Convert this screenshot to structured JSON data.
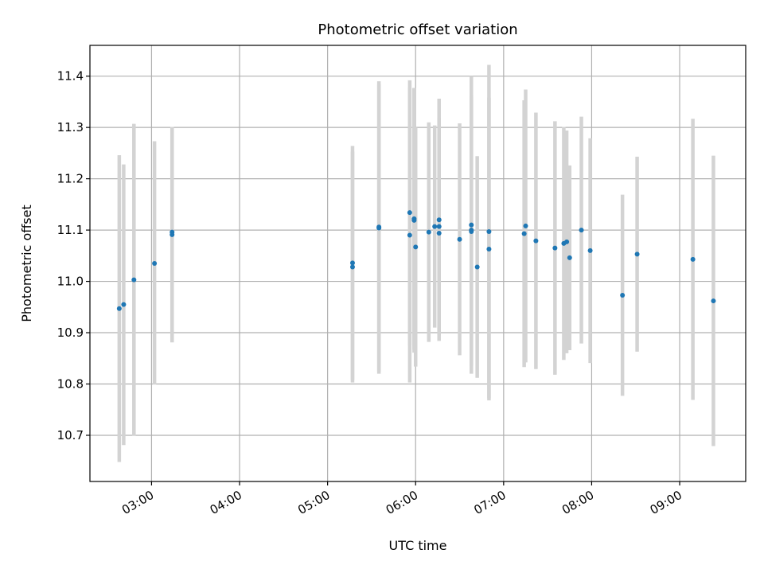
{
  "chart_data": {
    "type": "scatter",
    "title": "Photometric offset variation",
    "xlabel": "UTC time",
    "ylabel": "Photometric offset",
    "x_unit": "UTC time of day (HH:MM)",
    "xlim": [
      "02:18",
      "09:45"
    ],
    "ylim": [
      10.61,
      11.46
    ],
    "x_ticks": [
      "03:00",
      "04:00",
      "05:00",
      "06:00",
      "07:00",
      "08:00",
      "09:00"
    ],
    "y_ticks": [
      "10.7",
      "10.8",
      "10.9",
      "11.0",
      "11.1",
      "11.2",
      "11.3",
      "11.4"
    ],
    "grid": true,
    "legend": "none",
    "point_color": "#1f77b4",
    "errorbar_color": "#d3d3d3",
    "points": [
      {
        "x": "02:38",
        "y": 10.947,
        "low": 10.648,
        "high": 11.246
      },
      {
        "x": "02:41",
        "y": 10.955,
        "low": 10.681,
        "high": 11.228
      },
      {
        "x": "02:48",
        "y": 11.003,
        "low": 10.699,
        "high": 11.307
      },
      {
        "x": "03:02",
        "y": 11.035,
        "low": 10.799,
        "high": 11.273
      },
      {
        "x": "03:14",
        "y": 11.096,
        "low": 10.883,
        "high": 11.299
      },
      {
        "x": "03:14",
        "y": 11.091,
        "low": 10.881,
        "high": 11.301
      },
      {
        "x": "05:17",
        "y": 11.028,
        "low": 10.803,
        "high": 11.253
      },
      {
        "x": "05:17",
        "y": 11.036,
        "low": 10.808,
        "high": 11.264
      },
      {
        "x": "05:35",
        "y": 11.104,
        "low": 10.824,
        "high": 11.384
      },
      {
        "x": "05:35",
        "y": 11.106,
        "low": 10.82,
        "high": 11.39
      },
      {
        "x": "05:56",
        "y": 11.134,
        "low": 10.876,
        "high": 11.392
      },
      {
        "x": "05:56",
        "y": 11.09,
        "low": 10.803,
        "high": 11.377
      },
      {
        "x": "05:59",
        "y": 11.122,
        "low": 10.867,
        "high": 11.377
      },
      {
        "x": "05:59",
        "y": 11.119,
        "low": 10.861,
        "high": 11.377
      },
      {
        "x": "06:00",
        "y": 11.067,
        "low": 10.834,
        "high": 11.3
      },
      {
        "x": "06:09",
        "y": 11.096,
        "low": 10.882,
        "high": 11.31
      },
      {
        "x": "06:13",
        "y": 11.107,
        "low": 10.91,
        "high": 11.304
      },
      {
        "x": "06:16",
        "y": 11.12,
        "low": 10.884,
        "high": 11.356
      },
      {
        "x": "06:16",
        "y": 11.107,
        "low": 10.895,
        "high": 11.319
      },
      {
        "x": "06:16",
        "y": 11.094,
        "low": 10.9,
        "high": 11.288
      },
      {
        "x": "06:30",
        "y": 11.082,
        "low": 10.856,
        "high": 11.308
      },
      {
        "x": "06:38",
        "y": 11.11,
        "low": 10.82,
        "high": 11.4
      },
      {
        "x": "06:38",
        "y": 11.1,
        "low": 10.838,
        "high": 11.362
      },
      {
        "x": "06:38",
        "y": 11.097,
        "low": 10.835,
        "high": 11.359
      },
      {
        "x": "06:42",
        "y": 11.028,
        "low": 10.812,
        "high": 11.244
      },
      {
        "x": "06:50",
        "y": 11.063,
        "low": 10.768,
        "high": 11.358
      },
      {
        "x": "06:50",
        "y": 11.097,
        "low": 10.772,
        "high": 11.422
      },
      {
        "x": "07:14",
        "y": 11.093,
        "low": 10.833,
        "high": 11.353
      },
      {
        "x": "07:15",
        "y": 11.108,
        "low": 10.842,
        "high": 11.374
      },
      {
        "x": "07:22",
        "y": 11.079,
        "low": 10.829,
        "high": 11.329
      },
      {
        "x": "07:35",
        "y": 11.065,
        "low": 10.818,
        "high": 11.312
      },
      {
        "x": "07:41",
        "y": 11.074,
        "low": 10.847,
        "high": 11.301
      },
      {
        "x": "07:43",
        "y": 11.077,
        "low": 10.86,
        "high": 11.294
      },
      {
        "x": "07:45",
        "y": 11.046,
        "low": 10.866,
        "high": 11.226
      },
      {
        "x": "07:53",
        "y": 11.1,
        "low": 10.879,
        "high": 11.321
      },
      {
        "x": "07:59",
        "y": 11.06,
        "low": 10.841,
        "high": 11.279
      },
      {
        "x": "08:21",
        "y": 10.973,
        "low": 10.777,
        "high": 11.169
      },
      {
        "x": "08:31",
        "y": 11.053,
        "low": 10.863,
        "high": 11.243
      },
      {
        "x": "09:09",
        "y": 11.043,
        "low": 10.769,
        "high": 11.317
      },
      {
        "x": "09:23",
        "y": 10.962,
        "low": 10.679,
        "high": 11.245
      }
    ]
  }
}
